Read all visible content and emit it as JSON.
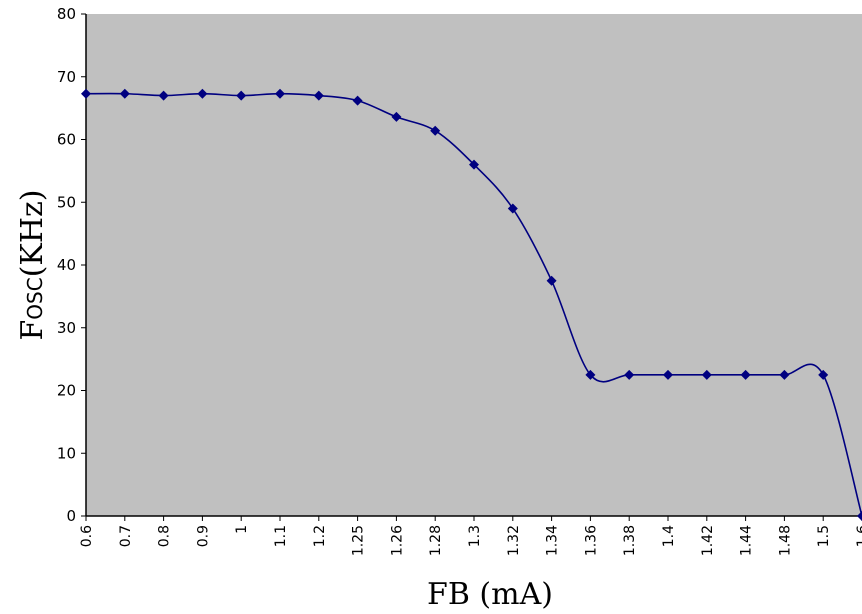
{
  "chart_data": {
    "type": "line",
    "x": [
      "0.6",
      "0.7",
      "0.8",
      "0.9",
      "1",
      "1.1",
      "1.2",
      "1.25",
      "1.26",
      "1.28",
      "1.3",
      "1.32",
      "1.34",
      "1.36",
      "1.38",
      "1.4",
      "1.42",
      "1.44",
      "1.48",
      "1.5",
      "1.6"
    ],
    "values": [
      67.3,
      67.3,
      67,
      67.3,
      67,
      67.3,
      67,
      66.2,
      63.6,
      61.4,
      56,
      49,
      37.5,
      22.5,
      22.5,
      22.5,
      22.5,
      22.5,
      22.5,
      22.5,
      0
    ],
    "ylim": [
      0,
      80
    ],
    "yticks": [
      "0",
      "10",
      "20",
      "30",
      "40",
      "50",
      "60",
      "70",
      "80"
    ],
    "xlabel": "FB (mA)",
    "ylabel": {
      "main": "F",
      "sub": "OSC",
      "suffix": "(KHz)"
    },
    "grid": false,
    "colors": {
      "plot_bg": "#c0c0c0",
      "line": "#000080"
    }
  }
}
